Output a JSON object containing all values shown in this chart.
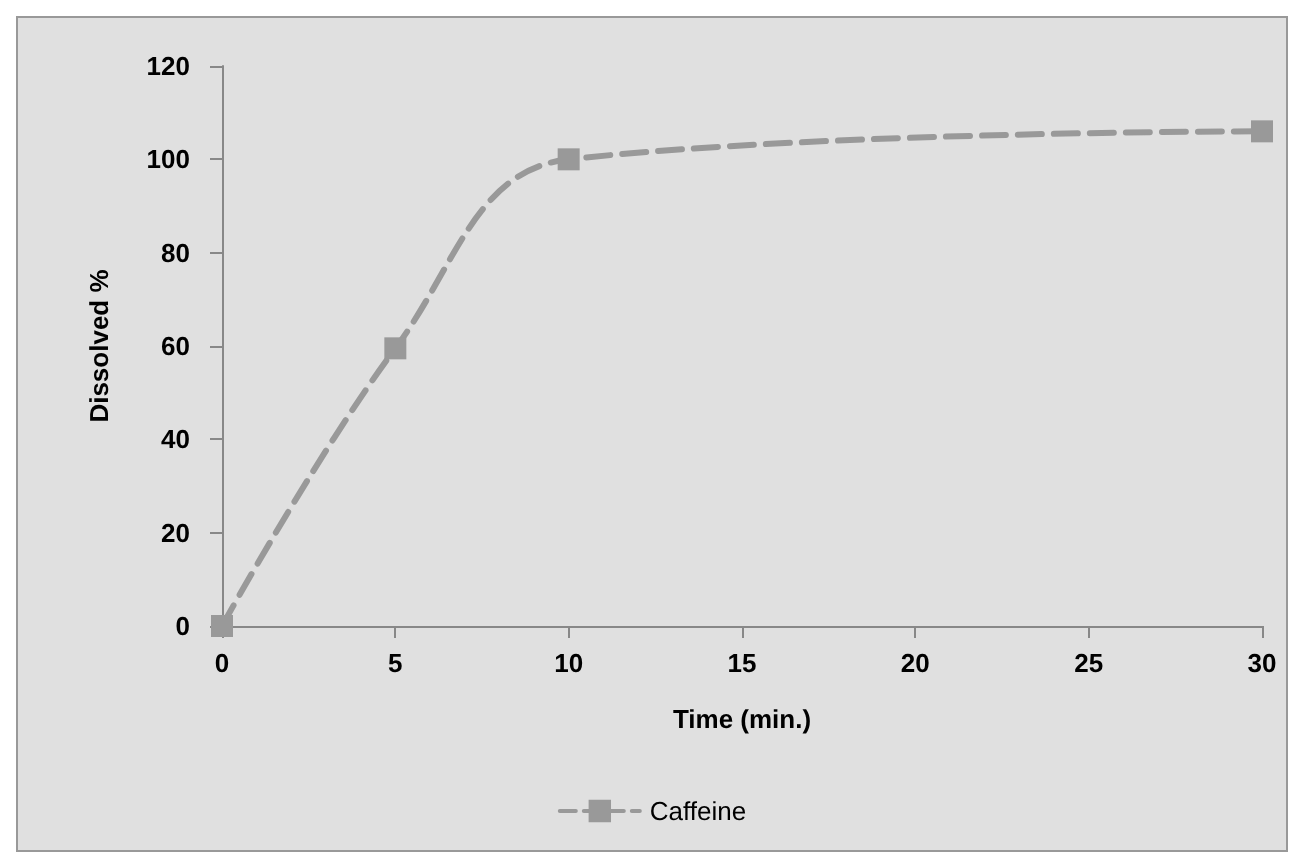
{
  "chart_data": {
    "type": "line",
    "xlabel": "Time (min.)",
    "ylabel": "Dissolved %",
    "x": [
      0,
      5,
      10,
      30
    ],
    "series": [
      {
        "name": "Caffeine",
        "color": "#999999",
        "values": [
          0,
          59.5,
          100,
          106
        ]
      }
    ],
    "xlim": [
      0,
      30
    ],
    "xticks": [
      0,
      5,
      10,
      15,
      20,
      25,
      30
    ],
    "ylim": [
      0,
      120
    ],
    "yticks": [
      0,
      20,
      40,
      60,
      80,
      100,
      120
    ],
    "legend": "bottom",
    "marker": "square",
    "line_style": "dashed"
  }
}
